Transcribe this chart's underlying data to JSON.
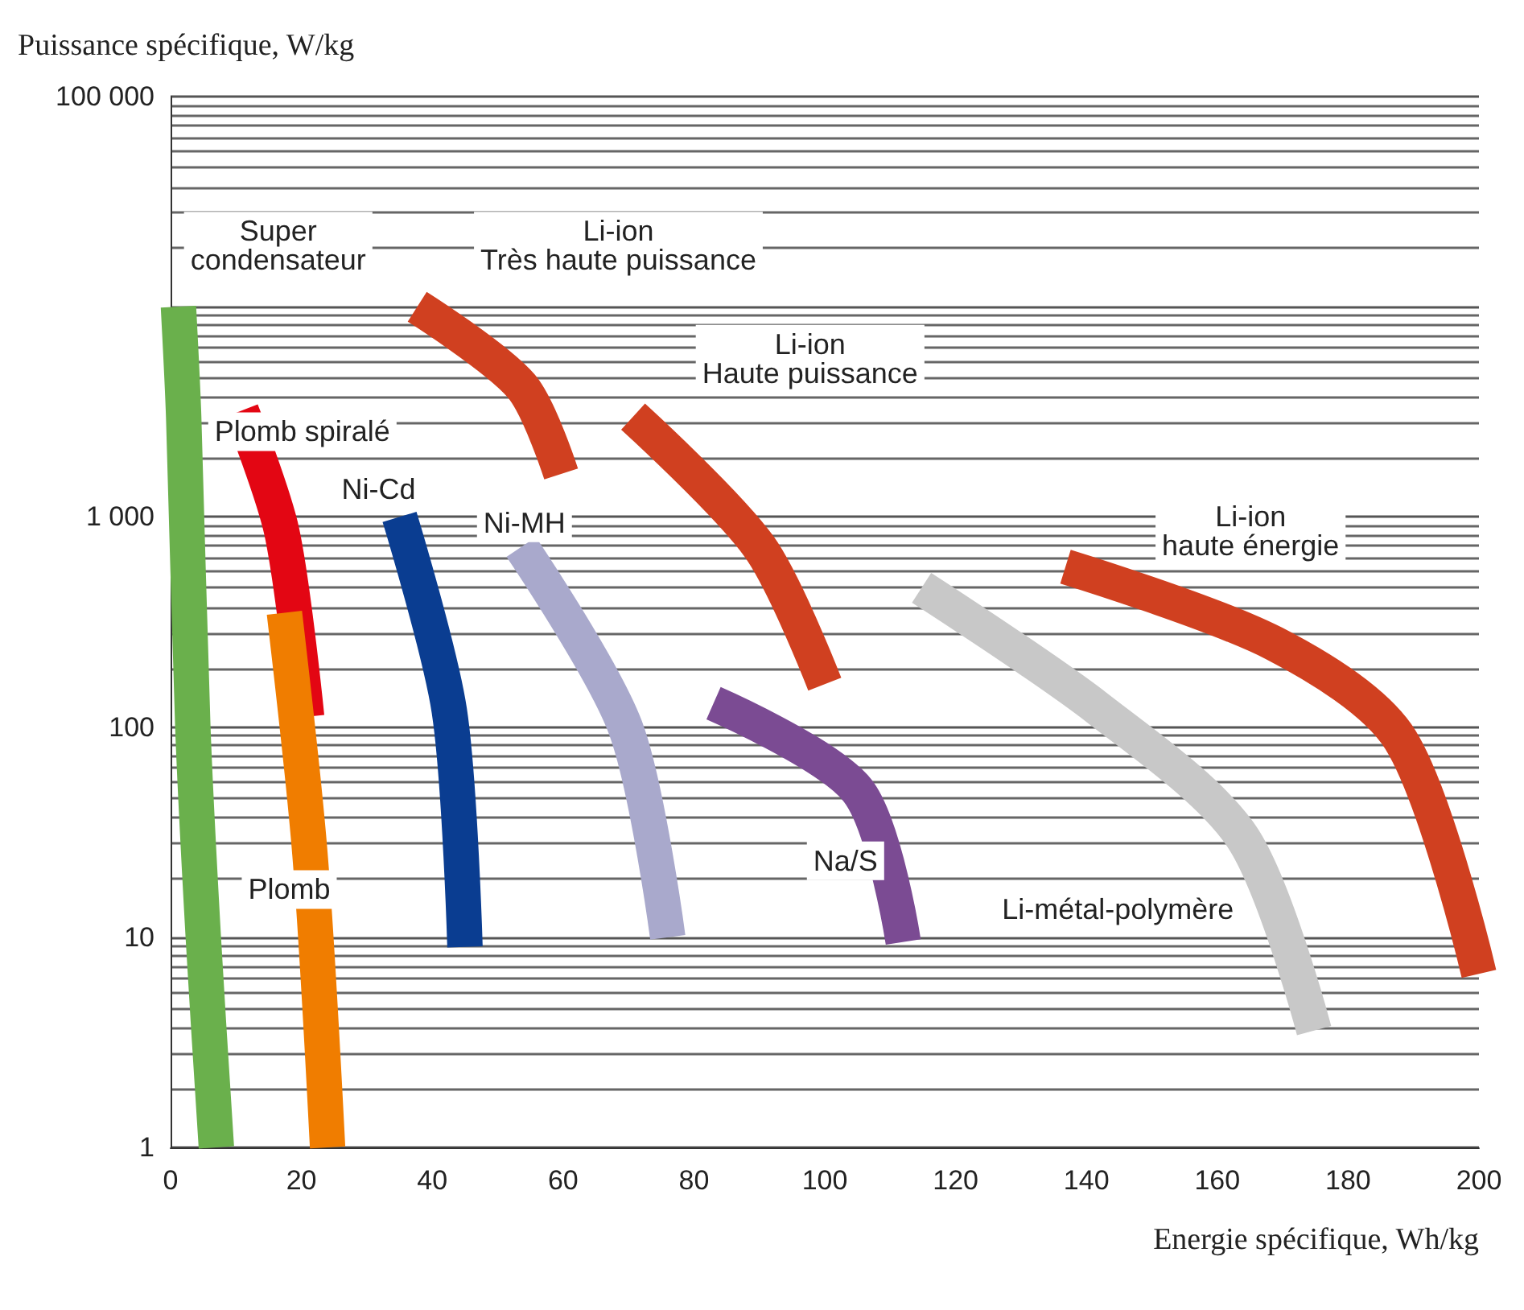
{
  "chart_data": {
    "type": "line",
    "xlabel": "Energie spécifique, Wh/kg",
    "ylabel": "Puissance spécifique, W/kg",
    "xlim": [
      0,
      200
    ],
    "xticks": [
      0,
      20,
      40,
      60,
      80,
      100,
      120,
      140,
      160,
      180,
      200
    ],
    "ylim": [
      1,
      100000
    ],
    "yticks": [
      1,
      10,
      100,
      {
        "value": 1000,
        "label": "1 000"
      },
      {
        "value": 10000,
        "label": null
      },
      {
        "value": 100000,
        "label": "100 000"
      }
    ],
    "log": "y",
    "grid": "y",
    "marker": "none",
    "line_style": "solid",
    "series": [
      {
        "name": "Super\ncondensateur",
        "color": "#6ab04c",
        "x": [
          1.2,
          2,
          3.4,
          5,
          7
        ],
        "values": [
          10000,
          3000,
          100,
          10,
          1
        ]
      },
      {
        "name": "Plomb spiralé",
        "color": "#e30613",
        "x": [
          10.8,
          17,
          20.8
        ],
        "values": [
          3200,
          850,
          112
        ]
      },
      {
        "name": "Plomb",
        "color": "#f07d00",
        "x": [
          17.4,
          21.3,
          24
        ],
        "values": [
          350,
          25,
          1
        ]
      },
      {
        "name": "Ni-Cd",
        "color": "#0a3d91",
        "x": [
          35,
          42.6,
          45
        ],
        "values": [
          1000,
          120,
          9
        ]
      },
      {
        "name": "Ni-MH",
        "color": "#a9a9cc",
        "x": [
          53.6,
          69.5,
          76
        ],
        "values": [
          720,
          100,
          10
        ]
      },
      {
        "name": "Li-ion\nTrès haute puissance",
        "color": "#d04020",
        "x": [
          37.7,
          53.6,
          59.7
        ],
        "values": [
          10000,
          4200,
          1600
        ]
      },
      {
        "name": "Li-ion\nHaute puissance",
        "color": "#d04020",
        "x": [
          70.7,
          90,
          100
        ],
        "values": [
          3000,
          720,
          160
        ]
      },
      {
        "name": "Na/S",
        "color": "#7b4b93",
        "x": [
          83,
          105,
          112
        ],
        "values": [
          130,
          50,
          9.5
        ]
      },
      {
        "name": "Li-métal-polymère",
        "color": "#c8c8c8",
        "x": [
          114.8,
          141.7,
          163.8,
          174.8
        ],
        "values": [
          460,
          123,
          30,
          3.6
        ]
      },
      {
        "name": "Li-ion\nhaute énergie",
        "color": "#d04020",
        "x": [
          136.8,
          168.7,
          188,
          200
        ],
        "values": [
          580,
          250,
          87,
          6.7
        ]
      }
    ]
  }
}
